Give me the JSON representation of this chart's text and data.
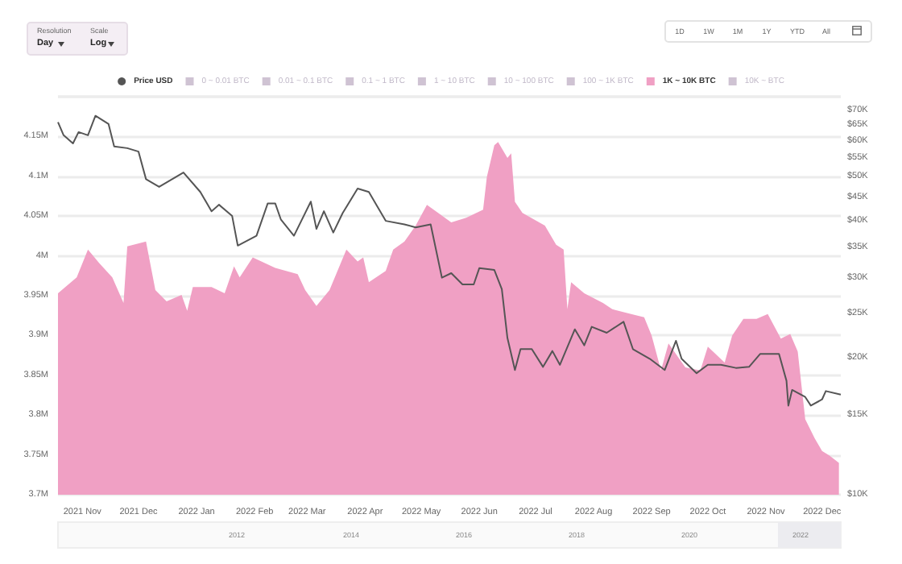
{
  "chart_data": {
    "type": "area",
    "series": [
      {
        "name": "Price USD",
        "type": "line",
        "axis": "y2",
        "color": "#555555",
        "x": [
          "2021-10-19",
          "2021-10-22",
          "2021-10-27",
          "2021-10-30",
          "2021-11-04",
          "2021-11-08",
          "2021-11-15",
          "2021-11-18",
          "2021-11-25",
          "2021-12-01",
          "2021-12-05",
          "2021-12-12",
          "2021-12-25",
          "2022-01-03",
          "2022-01-09",
          "2022-01-13",
          "2022-01-20",
          "2022-01-23",
          "2022-02-02",
          "2022-02-08",
          "2022-02-12",
          "2022-02-15",
          "2022-02-22",
          "2022-03-03",
          "2022-03-06",
          "2022-03-10",
          "2022-03-15",
          "2022-03-20",
          "2022-03-28",
          "2022-04-03",
          "2022-04-12",
          "2022-04-22",
          "2022-04-28",
          "2022-05-06",
          "2022-05-12",
          "2022-05-17",
          "2022-05-23",
          "2022-05-29",
          "2022-06-01",
          "2022-06-09",
          "2022-06-13",
          "2022-06-16",
          "2022-06-20",
          "2022-06-23",
          "2022-06-29",
          "2022-07-05",
          "2022-07-10",
          "2022-07-14",
          "2022-07-22",
          "2022-07-27",
          "2022-07-31",
          "2022-08-08",
          "2022-08-17",
          "2022-08-22",
          "2022-08-31",
          "2022-09-08",
          "2022-09-14",
          "2022-09-17",
          "2022-09-25",
          "2022-10-01",
          "2022-10-08",
          "2022-10-16",
          "2022-10-23",
          "2022-10-29",
          "2022-11-08",
          "2022-11-12",
          "2022-11-13",
          "2022-11-15",
          "2022-11-22",
          "2022-11-25",
          "2022-12-01",
          "2022-12-03",
          "2022-12-11"
        ],
        "values": [
          65900,
          61700,
          59200,
          62700,
          61700,
          68100,
          65300,
          58300,
          57800,
          56800,
          49400,
          47500,
          51100,
          46300,
          42000,
          43400,
          41000,
          35300,
          37100,
          43700,
          43700,
          40300,
          37100,
          44100,
          38400,
          42000,
          37700,
          41600,
          47100,
          46300,
          40000,
          39300,
          38700,
          39300,
          30000,
          30700,
          29000,
          29000,
          31500,
          31200,
          28300,
          22100,
          18800,
          20900,
          20900,
          19100,
          20700,
          19300,
          23100,
          21300,
          23400,
          22700,
          24000,
          20900,
          19900,
          18800,
          21800,
          19900,
          18500,
          19300,
          19300,
          19000,
          19100,
          20400,
          20400,
          17800,
          15700,
          17000,
          16400,
          15700,
          16200,
          16900,
          16600
        ]
      },
      {
        "name": "0 ~ 0.01 BTC",
        "color": "#cfc3d3"
      },
      {
        "name": "0.01 ~ 0.1 BTC",
        "color": "#cfc3d3"
      },
      {
        "name": "0.1 ~ 1 BTC",
        "color": "#cfc3d3"
      },
      {
        "name": "1 ~ 10 BTC",
        "color": "#cfc3d3"
      },
      {
        "name": "10 ~ 100 BTC",
        "color": "#cfc3d3"
      },
      {
        "name": "100 ~ 1K BTC",
        "color": "#cfc3d3"
      },
      {
        "name": "1K ~ 10K BTC",
        "type": "area",
        "color": "#f0a0c4",
        "x": [
          "2021-10-19",
          "2021-10-29",
          "2021-11-04",
          "2021-11-10",
          "2021-11-17",
          "2021-11-23",
          "2021-11-25",
          "2021-12-05",
          "2021-12-10",
          "2021-12-16",
          "2021-12-24",
          "2021-12-27",
          "2021-12-30",
          "2022-01-09",
          "2022-01-16",
          "2022-01-21",
          "2022-01-24",
          "2022-01-31",
          "2022-02-12",
          "2022-02-24",
          "2022-02-28",
          "2022-03-06",
          "2022-03-13",
          "2022-03-22",
          "2022-03-28",
          "2022-03-31",
          "2022-04-03",
          "2022-04-12",
          "2022-04-16",
          "2022-04-22",
          "2022-04-28",
          "2022-05-04",
          "2022-05-10",
          "2022-05-17",
          "2022-05-25",
          "2022-06-03",
          "2022-06-05",
          "2022-06-09",
          "2022-06-11",
          "2022-06-16",
          "2022-06-18",
          "2022-06-20",
          "2022-06-24",
          "2022-07-06",
          "2022-07-12",
          "2022-07-16",
          "2022-07-18",
          "2022-07-20",
          "2022-07-27",
          "2022-08-06",
          "2022-08-11",
          "2022-08-21",
          "2022-08-28",
          "2022-09-01",
          "2022-09-06",
          "2022-09-10",
          "2022-09-19",
          "2022-09-27",
          "2022-10-01",
          "2022-10-10",
          "2022-10-14",
          "2022-10-20",
          "2022-10-27",
          "2022-11-02",
          "2022-11-09",
          "2022-11-14",
          "2022-11-18",
          "2022-11-22",
          "2022-11-27",
          "2022-12-01",
          "2022-12-05",
          "2022-12-10"
        ],
        "values": [
          3.953,
          3.973,
          4.008,
          3.991,
          3.973,
          3.941,
          4.012,
          4.018,
          3.957,
          3.943,
          3.951,
          3.931,
          3.961,
          3.961,
          3.953,
          3.987,
          3.973,
          3.998,
          3.985,
          3.977,
          3.957,
          3.937,
          3.957,
          4.008,
          3.993,
          3.998,
          3.967,
          3.981,
          4.008,
          4.018,
          4.038,
          4.064,
          4.054,
          4.042,
          4.048,
          4.058,
          4.099,
          4.139,
          4.143,
          4.123,
          4.129,
          4.068,
          4.054,
          4.038,
          4.014,
          4.008,
          3.933,
          3.967,
          3.953,
          3.941,
          3.933,
          3.927,
          3.923,
          3.9,
          3.856,
          3.89,
          3.86,
          3.856,
          3.886,
          3.866,
          3.9,
          3.921,
          3.921,
          3.927,
          3.896,
          3.902,
          3.88,
          3.795,
          3.771,
          3.755,
          3.749,
          3.74
        ]
      },
      {
        "name": "10K ~ BTC",
        "color": "#cfc3d3"
      }
    ],
    "xlim": [
      "2021-10-19",
      "2022-12-11"
    ],
    "xticks": [
      {
        "value": "2021-11-01",
        "label": "2021 Nov"
      },
      {
        "value": "2021-12-01",
        "label": "2021 Dec"
      },
      {
        "value": "2022-01-01",
        "label": "2022 Jan"
      },
      {
        "value": "2022-02-01",
        "label": "2022 Feb"
      },
      {
        "value": "2022-03-01",
        "label": "2022 Mar"
      },
      {
        "value": "2022-04-01",
        "label": "2022 Apr"
      },
      {
        "value": "2022-05-01",
        "label": "2022 May"
      },
      {
        "value": "2022-06-01",
        "label": "2022 Jun"
      },
      {
        "value": "2022-07-01",
        "label": "2022 Jul"
      },
      {
        "value": "2022-08-01",
        "label": "2022 Aug"
      },
      {
        "value": "2022-09-01",
        "label": "2022 Sep"
      },
      {
        "value": "2022-10-01",
        "label": "2022 Oct"
      },
      {
        "value": "2022-11-01",
        "label": "2022 Nov"
      },
      {
        "value": "2022-12-01",
        "label": "2022 Dec"
      }
    ],
    "ylim": [
      3.7,
      4.2
    ],
    "yticks": [
      {
        "value": 3.7,
        "label": "3.7M"
      },
      {
        "value": 3.75,
        "label": "3.75M"
      },
      {
        "value": 3.8,
        "label": "3.8M"
      },
      {
        "value": 3.85,
        "label": "3.85M"
      },
      {
        "value": 3.9,
        "label": "3.9M"
      },
      {
        "value": 3.95,
        "label": "3.95M"
      },
      {
        "value": 4,
        "label": "4M"
      },
      {
        "value": 4.05,
        "label": "4.05M"
      },
      {
        "value": 4.1,
        "label": "4.1M"
      },
      {
        "value": 4.15,
        "label": "4.15M"
      }
    ],
    "y2lim": [
      10000,
      75000
    ],
    "y2ticks": [
      {
        "value": 10000,
        "label": "$10K"
      },
      {
        "value": 15000,
        "label": "$15K"
      },
      {
        "value": 20000,
        "label": "$20K"
      },
      {
        "value": 25000,
        "label": "$25K"
      },
      {
        "value": 30000,
        "label": "$30K"
      },
      {
        "value": 35000,
        "label": "$35K"
      },
      {
        "value": 40000,
        "label": "$40K"
      },
      {
        "value": 45000,
        "label": "$45K"
      },
      {
        "value": 50000,
        "label": "$50K"
      },
      {
        "value": 55000,
        "label": "$55K"
      },
      {
        "value": 60000,
        "label": "$60K"
      },
      {
        "value": 65000,
        "label": "$65K"
      },
      {
        "value": 70000,
        "label": "$70K"
      }
    ],
    "log": "y2",
    "grid": "y",
    "legend": "top",
    "annotations": [
      "Resolution",
      "Day",
      "Scale",
      "Log",
      "1D",
      "1W",
      "1M",
      "1Y",
      "YTD",
      "All",
      "2012",
      "2014",
      "2016",
      "2018",
      "2020",
      "2022"
    ]
  }
}
